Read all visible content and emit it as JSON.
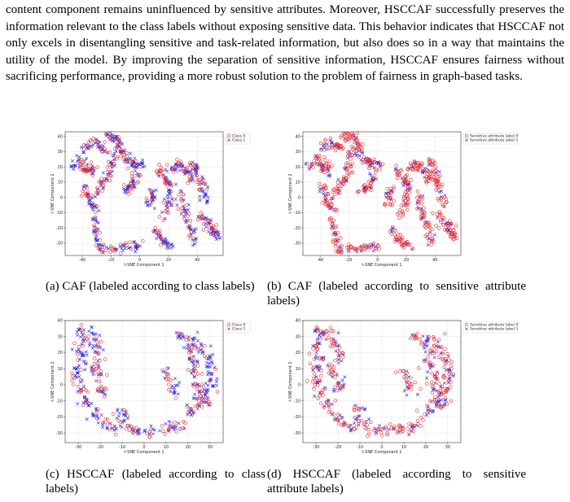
{
  "paragraph": "content component remains uninfluenced by sensitive attributes. Moreover, HSCCAF successfully preserves the information relevant to the class labels without exposing sensitive data. This behavior indicates that HSCCAF not only excels in disentangling sensitive and task-related information, but also does so in a way that maintains the utility of the model. By improving the separation of sensitive information, HSCCAF ensures fairness without sacrificing performance, providing a more robust solution to the problem of fairness in graph-based tasks.",
  "colors": {
    "series0": "#e8262a",
    "series1": "#2424e0"
  },
  "chart_data": [
    {
      "id": "a",
      "type": "scatter",
      "shape": "caf",
      "caption": "(a) CAF (labeled according to class labels)",
      "xlabel": "t-SNE Component 1",
      "ylabel": "t-SNE Component 2",
      "xticks": [
        -40,
        -20,
        0,
        20,
        40
      ],
      "yticks": [
        -30,
        -20,
        -10,
        0,
        10,
        20,
        30,
        40
      ],
      "xlim": [
        -52,
        58
      ],
      "ylim": [
        -38,
        43
      ],
      "legend_position": "top-right",
      "series": [
        {
          "name": "Class 0",
          "marker": "circle",
          "share": 0.5
        },
        {
          "name": "Class 1",
          "marker": "x",
          "share": 0.5
        }
      ]
    },
    {
      "id": "b",
      "type": "scatter",
      "shape": "caf",
      "caption": "(b) CAF (labeled according to sensitive attribute labels)",
      "xlabel": "t-SNE Component 1",
      "ylabel": "t-SNE Component 2",
      "xticks": [
        -40,
        -20,
        0,
        20,
        40
      ],
      "yticks": [
        -30,
        -20,
        -10,
        0,
        10,
        20,
        30,
        40
      ],
      "xlim": [
        -52,
        58
      ],
      "ylim": [
        -38,
        43
      ],
      "legend_position": "top-right",
      "series": [
        {
          "name": "Sensitive attribute label 0",
          "marker": "circle",
          "share": 0.8
        },
        {
          "name": "Sensitive attribute label 1",
          "marker": "x",
          "share": 0.2
        }
      ]
    },
    {
      "id": "c",
      "type": "scatter",
      "shape": "hsccaf",
      "caption": "(c) HSCCAF (labeled according to class labels)",
      "xlabel": "t-SNE Component 1",
      "ylabel": "t-SNE Component 2",
      "xticks": [
        -30,
        -20,
        -10,
        0,
        10,
        20,
        30
      ],
      "yticks": [
        -30,
        -20,
        -10,
        0,
        10,
        20,
        30,
        40
      ],
      "xlim": [
        -36,
        36
      ],
      "ylim": [
        -36,
        40
      ],
      "legend_position": "top-right",
      "series": [
        {
          "name": "Class 0",
          "marker": "circle",
          "share": 0.45
        },
        {
          "name": "Class 1",
          "marker": "x",
          "share": 0.55
        }
      ]
    },
    {
      "id": "d",
      "type": "scatter",
      "shape": "hsccaf",
      "caption": "(d) HSCCAF (labeled according to sensitive attribute labels)",
      "xlabel": "t-SNE Component 1",
      "ylabel": "t-SNE Component 2",
      "xticks": [
        -30,
        -20,
        -10,
        0,
        10,
        20,
        30
      ],
      "yticks": [
        -30,
        -20,
        -10,
        0,
        10,
        20,
        30,
        40
      ],
      "xlim": [
        -36,
        36
      ],
      "ylim": [
        -36,
        40
      ],
      "legend_position": "top-right",
      "series": [
        {
          "name": "Sensitive attribute label 0",
          "marker": "circle",
          "share": 0.6
        },
        {
          "name": "Sensitive attribute label 1",
          "marker": "x",
          "share": 0.4
        }
      ]
    }
  ],
  "captions": {
    "a": "(a) CAF (labeled according to class labels)",
    "b": "(b) CAF (labeled according to sensitive attribute labels)",
    "c": "(c) HSCCAF (labeled according to class labels)",
    "d": "(d) HSCCAF (labeled according to sensitive attribute labels)"
  }
}
